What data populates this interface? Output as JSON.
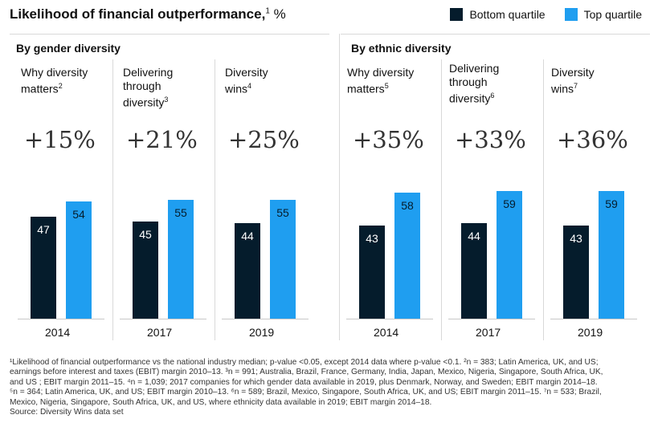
{
  "title": "Likelihood of financial outperformance,",
  "title_sup": "1",
  "title_unit": " %",
  "legend": {
    "bottom": {
      "label": "Bottom quartile",
      "color": "#051c2c"
    },
    "top": {
      "label": "Top quartile",
      "color": "#1f9ef0"
    }
  },
  "groups": [
    {
      "title": "By gender diversity"
    },
    {
      "title": "By ethnic diversity"
    }
  ],
  "chart_data": {
    "type": "bar",
    "ylim": [
      0,
      80
    ],
    "series_names": [
      "Bottom quartile",
      "Top quartile"
    ],
    "panels": [
      {
        "group": "By gender diversity",
        "title_lines": [
          "Why diversity",
          "matters"
        ],
        "sup": "2",
        "year": "2014",
        "uplift": "+15%",
        "bottom": 47,
        "top": 54
      },
      {
        "group": "By gender diversity",
        "title_lines": [
          "Delivering",
          "through",
          "diversity"
        ],
        "sup": "3",
        "year": "2017",
        "uplift": "+21%",
        "bottom": 45,
        "top": 55
      },
      {
        "group": "By gender diversity",
        "title_lines": [
          "Diversity",
          "wins"
        ],
        "sup": "4",
        "year": "2019",
        "uplift": "+25%",
        "bottom": 44,
        "top": 55
      },
      {
        "group": "By ethnic diversity",
        "title_lines": [
          "Why diversity",
          "matters"
        ],
        "sup": "5",
        "year": "2014",
        "uplift": "+35%",
        "bottom": 43,
        "top": 58
      },
      {
        "group": "By ethnic diversity",
        "title_lines": [
          "Delivering",
          "through",
          "diversity"
        ],
        "sup": "6",
        "year": "2017",
        "uplift": "+33%",
        "bottom": 44,
        "top": 59
      },
      {
        "group": "By ethnic diversity",
        "title_lines": [
          "Diversity",
          "wins"
        ],
        "sup": "7",
        "year": "2019",
        "uplift": "+36%",
        "bottom": 43,
        "top": 59
      }
    ]
  },
  "footnote_lines": [
    "¹Likelihood of financial outperformance vs the national industry median; p-value <0.05, except 2014 data where p-value <0.1.  ²n = 383; Latin America, UK, and US;",
    "earnings before interest and taxes (EBIT) margin 2010–13. ³n = 991; Australia, Brazil, France, Germany, India, Japan, Mexico, Nigeria, Singapore, South Africa, UK,",
    "and US ; EBIT margin 2011–15. ⁴n = 1,039; 2017 companies for which gender data available in 2019, plus Denmark, Norway, and Sweden;  EBIT margin 2014–18.",
    "⁵n = 364; Latin America, UK, and US; EBIT margin 2010–13. ⁶n = 589; Brazil, Mexico, Singapore, South Africa, UK, and US; EBIT margin 2011–15. ⁷n = 533; Brazil,",
    "Mexico, Nigeria, Singapore, South Africa, UK, and US, where ethnicity data available in 2019; EBIT margin 2014–18.",
    "Source: Diversity Wins data set"
  ]
}
